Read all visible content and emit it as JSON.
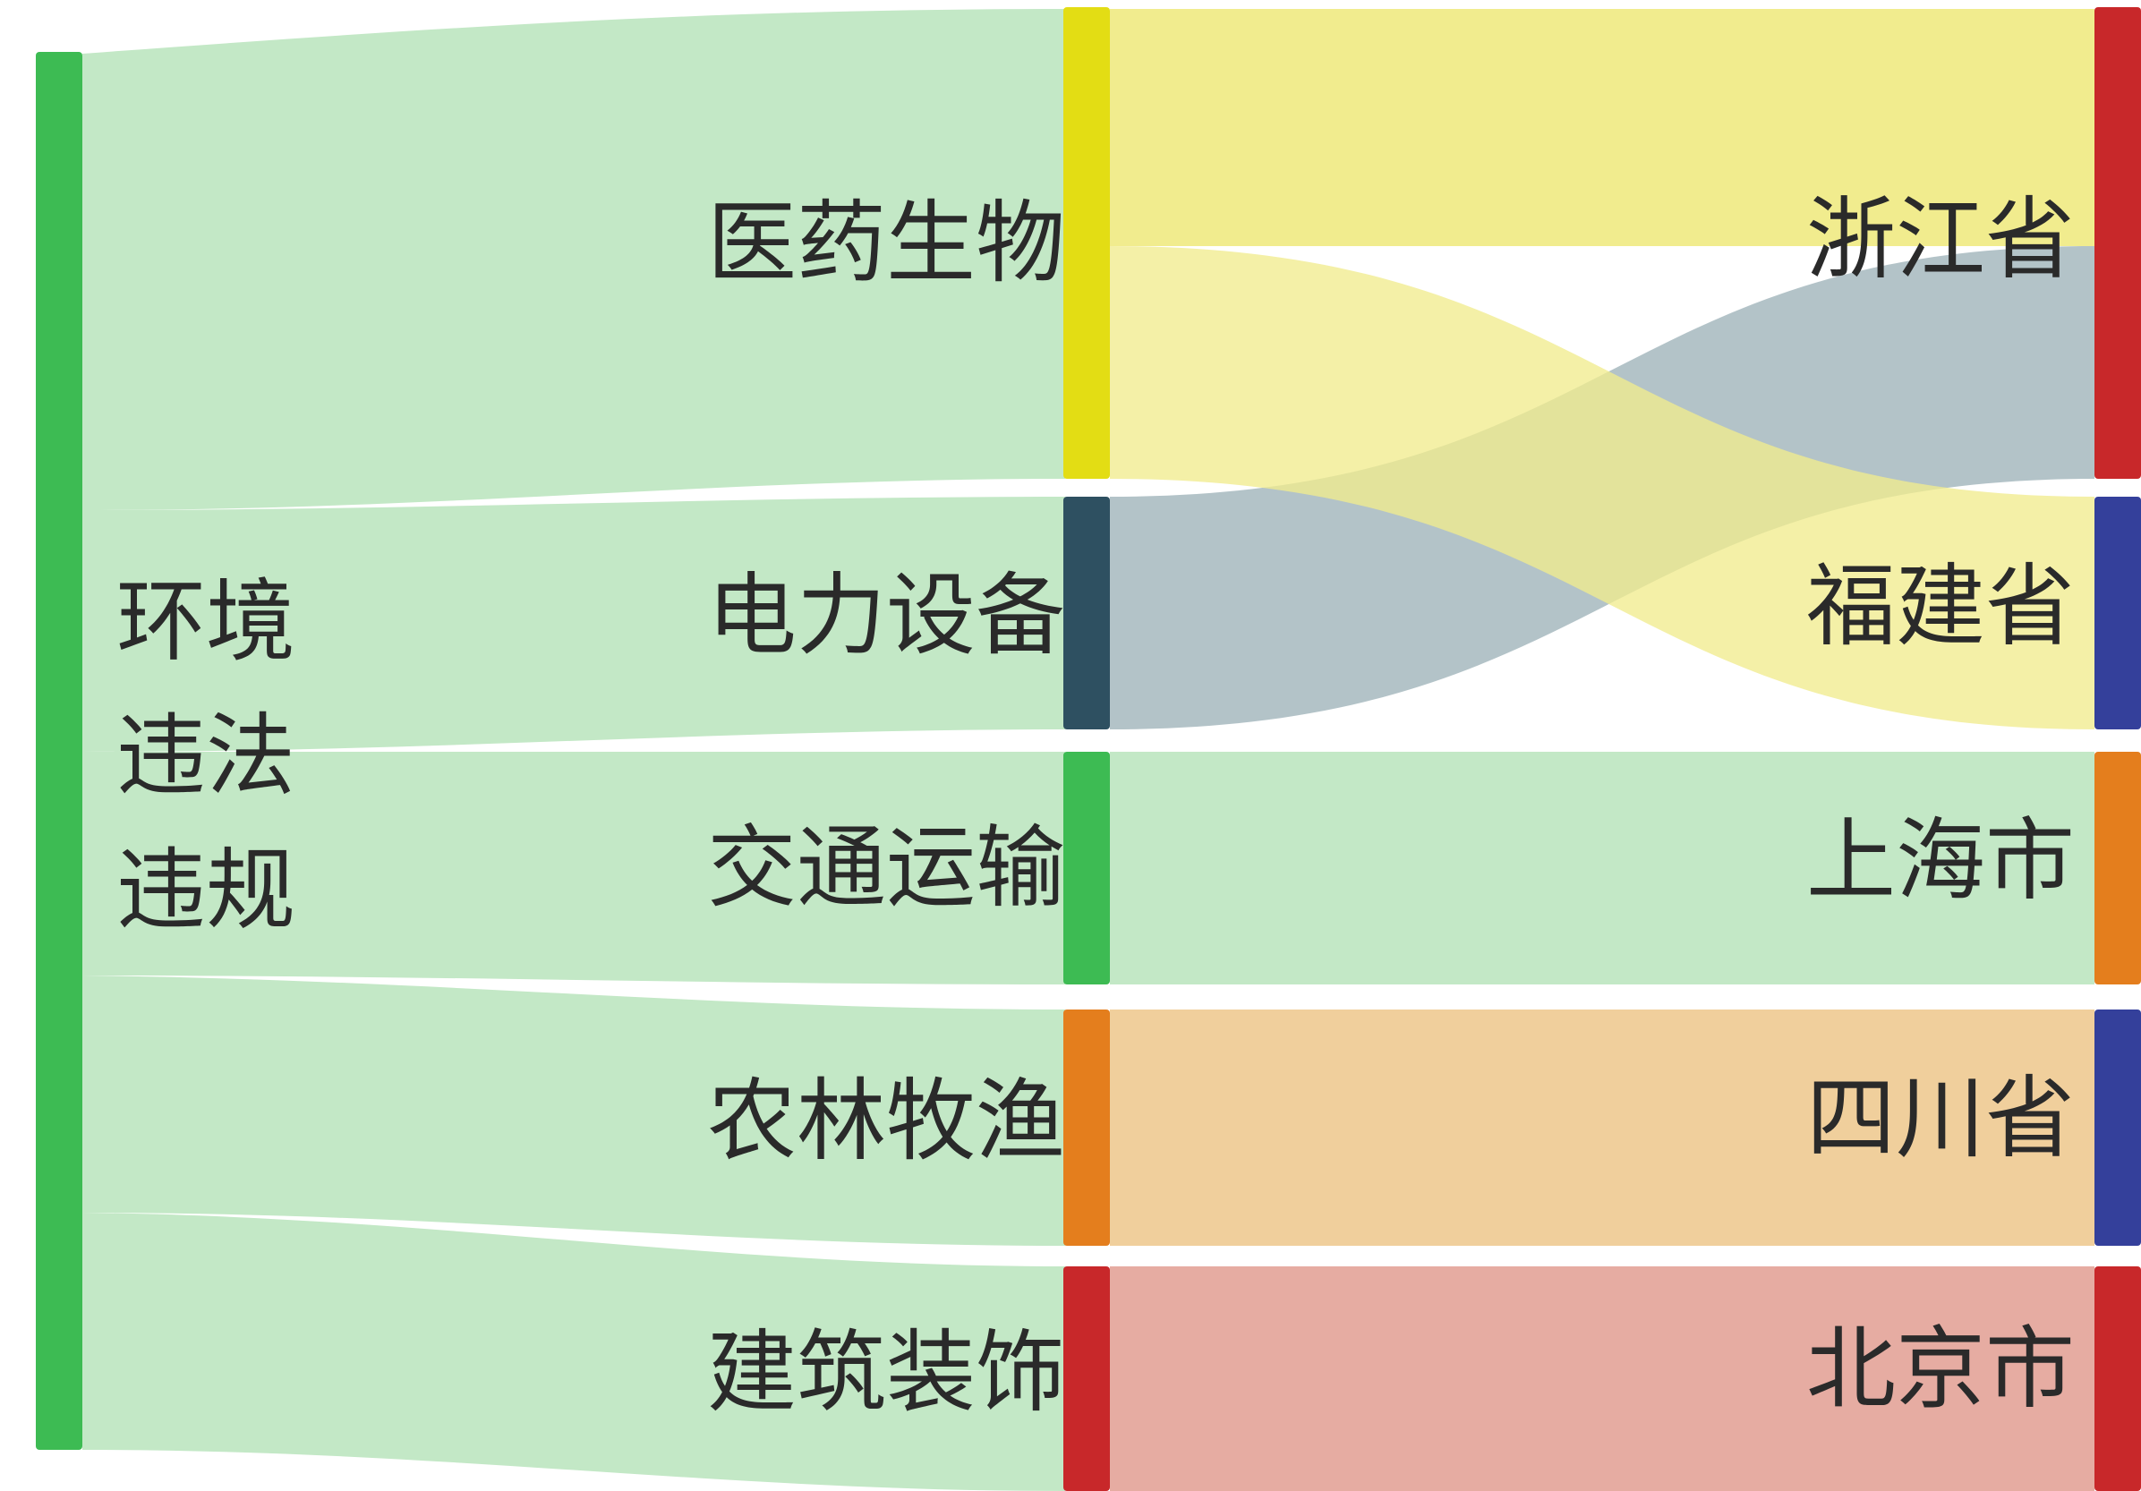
{
  "source": {
    "lines": [
      "环境",
      "违法",
      "违规"
    ],
    "color": "#3dbb53"
  },
  "industries": [
    {
      "label": "医药生物",
      "color": "#e3dd14",
      "flow_color": "#f1ec8e"
    },
    {
      "label": "电力设备",
      "color": "#2e5061",
      "flow_color": "#9eb2b8"
    },
    {
      "label": "交通运输",
      "color": "#3dbb53",
      "flow_color": "#c3e8c6"
    },
    {
      "label": "农林牧渔",
      "color": "#e47e1d",
      "flow_color": "#f0cf9c"
    },
    {
      "label": "建筑装饰",
      "color": "#c8282a",
      "flow_color": "#e6aca2"
    }
  ],
  "provinces": [
    {
      "label": "浙江省",
      "color": "#c8282a"
    },
    {
      "label": "福建省",
      "color": "#34409b"
    },
    {
      "label": "上海市",
      "color": "#e47e1d"
    },
    {
      "label": "四川省",
      "color": "#34409b"
    },
    {
      "label": "北京市",
      "color": "#c8282a"
    }
  ],
  "source_flow_color": "#c3e8c6",
  "links": [
    {
      "from": "环境违法违规",
      "to": "医药生物",
      "value": 2
    },
    {
      "from": "环境违法违规",
      "to": "电力设备",
      "value": 1
    },
    {
      "from": "环境违法违规",
      "to": "交通运输",
      "value": 1
    },
    {
      "from": "环境违法违规",
      "to": "农林牧渔",
      "value": 1
    },
    {
      "from": "环境违法违规",
      "to": "建筑装饰",
      "value": 1
    },
    {
      "from": "医药生物",
      "to": "浙江省",
      "value": 1
    },
    {
      "from": "医药生物",
      "to": "福建省",
      "value": 1
    },
    {
      "from": "电力设备",
      "to": "浙江省",
      "value": 1
    },
    {
      "from": "交通运输",
      "to": "上海市",
      "value": 1
    },
    {
      "from": "农林牧渔",
      "to": "四川省",
      "value": 1
    },
    {
      "from": "建筑装饰",
      "to": "北京市",
      "value": 1
    }
  ]
}
